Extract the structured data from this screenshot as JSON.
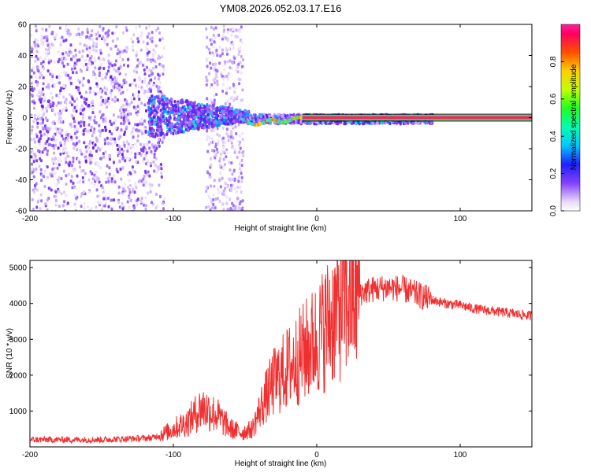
{
  "title": "YM08.2026.052.03.17.E16",
  "colors": {
    "series": "#f03030",
    "axis": "#000000",
    "band": "#ff2060"
  },
  "chart_data": [
    {
      "type": "heatmap",
      "xlabel": "Height of straight line (km)",
      "ylabel": "Frequency (Hz)",
      "xlim": [
        -200,
        150
      ],
      "ylim": [
        -60,
        60
      ],
      "xticks": [
        "-200",
        "-100",
        "0",
        "100"
      ],
      "xtick_values": [
        -200,
        -100,
        0,
        100
      ],
      "yticks": [
        "-60",
        "-40",
        "-20",
        "0",
        "20",
        "40",
        "60"
      ],
      "ytick_values": [
        -60,
        -40,
        -20,
        0,
        20,
        40,
        60
      ],
      "colorbar": {
        "label": "Normalized spectral amplitude",
        "range": [
          0,
          1
        ],
        "ticks": [
          "0.0",
          "0.2",
          "0.4",
          "0.6",
          "0.8"
        ],
        "tick_values": [
          0.0,
          0.2,
          0.4,
          0.6,
          0.8
        ]
      }
    },
    {
      "type": "line",
      "xlabel": "Height of straight line (km)",
      "ylabel": "SNR (10 * v/v)",
      "xlim": [
        -200,
        150
      ],
      "ylim": [
        0,
        5200
      ],
      "xticks": [
        "-200",
        "-100",
        "0",
        "100"
      ],
      "xtick_values": [
        -200,
        -100,
        0,
        100
      ],
      "yticks": [
        "1000",
        "2000",
        "3000",
        "4000",
        "5000"
      ],
      "ytick_values": [
        1000,
        2000,
        3000,
        4000,
        5000
      ],
      "series": [
        {
          "name": "SNR",
          "x": [
            -200,
            -150,
            -115,
            -105,
            -90,
            -80,
            -70,
            -60,
            -52,
            -45,
            -38,
            -30,
            -20,
            -10,
            0,
            10,
            20,
            30,
            40,
            50,
            60,
            70,
            80,
            90,
            100,
            110,
            120,
            130,
            140,
            150
          ],
          "values": [
            200,
            200,
            250,
            400,
            700,
            1100,
            900,
            500,
            400,
            500,
            1200,
            1800,
            2200,
            2600,
            3000,
            3600,
            4100,
            4300,
            4400,
            4450,
            4400,
            4250,
            4100,
            4000,
            3950,
            3850,
            3800,
            3750,
            3700,
            3650
          ]
        }
      ]
    }
  ]
}
